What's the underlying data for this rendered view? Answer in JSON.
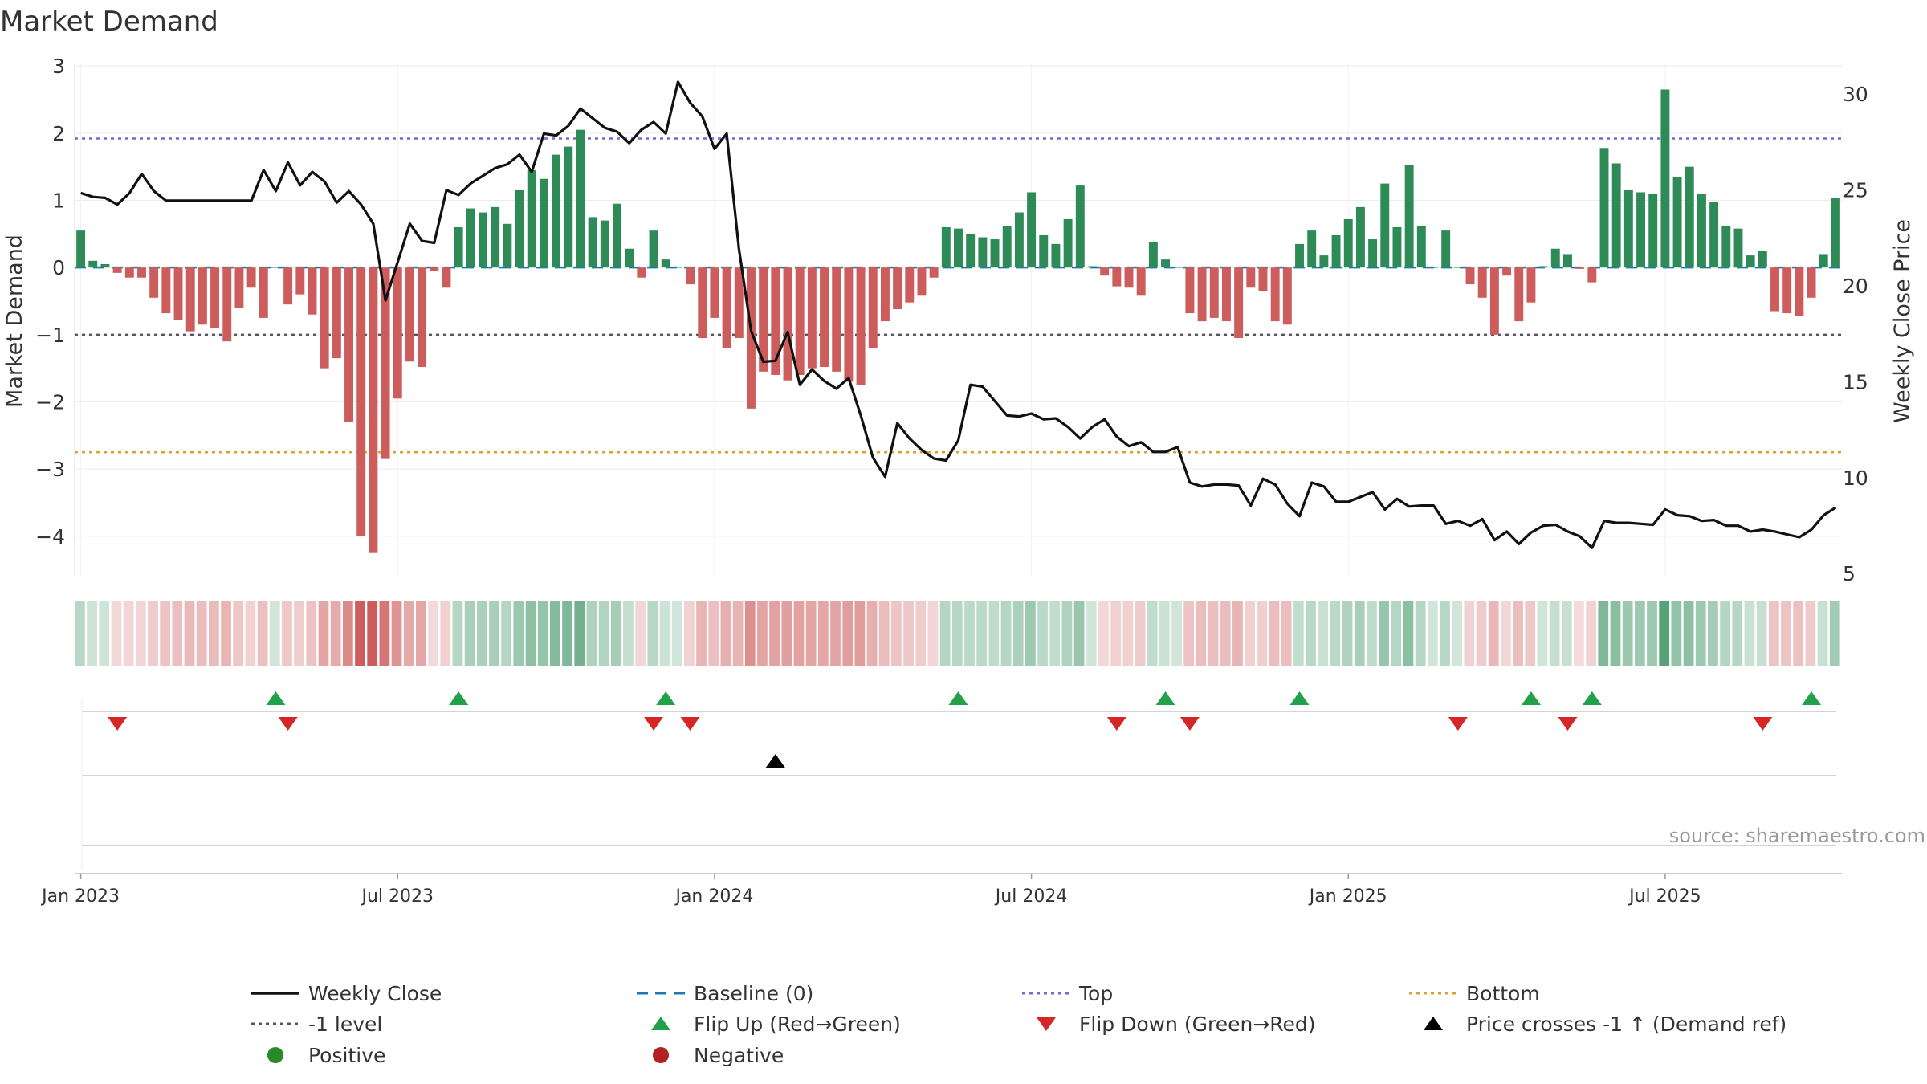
{
  "chart_data": {
    "type": "bar",
    "title": "Market Demand",
    "ylabel": "Market Demand",
    "y2label": "Weekly Close Price",
    "ylim": [
      -4.6,
      3.05
    ],
    "y2lim": [
      4.8,
      31.6
    ],
    "yticks": [
      "3",
      "2",
      "1",
      "0",
      "−1",
      "−2",
      "−3",
      "−4"
    ],
    "ytick_values": [
      3,
      2,
      1,
      0,
      -1,
      -2,
      -3,
      -4
    ],
    "y2ticks": [
      "30",
      "25",
      "20",
      "15",
      "10",
      "5"
    ],
    "y2tick_values": [
      30,
      25,
      20,
      15,
      10,
      5
    ],
    "xticks": [
      "Jan 2023",
      "Jul 2023",
      "Jan 2024",
      "Jul 2024",
      "Jan 2025",
      "Jul 2025"
    ],
    "xtick_weeks": [
      0.5,
      26.5,
      52.5,
      78.5,
      104.5,
      130.5
    ],
    "reference_lines": {
      "baseline": 0,
      "top": 1.92,
      "minus_one": -1,
      "bottom": -2.75
    },
    "demand": [
      0.55,
      0.1,
      0.05,
      -0.08,
      -0.15,
      -0.15,
      -0.45,
      -0.68,
      -0.78,
      -0.95,
      -0.85,
      -0.9,
      -1.1,
      -0.6,
      -0.3,
      -0.75,
      0.0,
      -0.55,
      -0.4,
      -0.7,
      -1.5,
      -1.35,
      -2.3,
      -4.0,
      -4.25,
      -2.85,
      -1.95,
      -1.4,
      -1.48,
      -0.05,
      -0.3,
      0.6,
      0.88,
      0.82,
      0.9,
      0.65,
      1.15,
      1.45,
      1.32,
      1.68,
      1.8,
      2.05,
      0.75,
      0.7,
      0.95,
      0.28,
      -0.15,
      0.55,
      0.12,
      0.0,
      -0.25,
      -1.05,
      -0.75,
      -1.2,
      -1.05,
      -2.1,
      -1.55,
      -1.6,
      -1.68,
      -1.6,
      -1.5,
      -1.48,
      -1.55,
      -1.7,
      -1.75,
      -1.2,
      -0.8,
      -0.62,
      -0.52,
      -0.42,
      -0.15,
      0.6,
      0.58,
      0.5,
      0.45,
      0.42,
      0.62,
      0.82,
      1.12,
      0.48,
      0.35,
      0.72,
      1.22,
      0.02,
      -0.12,
      -0.28,
      -0.3,
      -0.42,
      0.38,
      0.12,
      0.0,
      -0.68,
      -0.8,
      -0.75,
      -0.8,
      -1.05,
      -0.3,
      -0.35,
      -0.8,
      -0.85,
      0.35,
      0.55,
      0.18,
      0.48,
      0.72,
      0.9,
      0.42,
      1.25,
      0.6,
      1.52,
      0.62,
      0.0,
      0.55,
      0.0,
      -0.25,
      -0.45,
      -1.0,
      -0.12,
      -0.8,
      -0.52,
      0.02,
      0.28,
      0.2,
      -0.02,
      -0.22,
      1.78,
      1.55,
      1.15,
      1.12,
      1.1,
      2.65,
      1.35,
      1.5,
      1.1,
      0.98,
      0.62,
      0.58,
      0.18,
      0.25,
      -0.65,
      -0.68,
      -0.72,
      -0.45,
      0.2,
      1.03
    ],
    "close": [
      24.8,
      24.6,
      24.55,
      24.2,
      24.8,
      25.8,
      24.9,
      24.4,
      24.4,
      24.4,
      24.4,
      24.4,
      24.4,
      24.4,
      24.4,
      26.0,
      24.9,
      26.4,
      25.2,
      25.9,
      25.4,
      24.3,
      24.9,
      24.2,
      23.2,
      19.2,
      21.2,
      23.2,
      22.3,
      22.2,
      24.95,
      24.7,
      25.3,
      25.7,
      26.1,
      26.3,
      26.8,
      25.9,
      27.9,
      27.8,
      28.3,
      29.2,
      28.7,
      28.2,
      28.0,
      27.4,
      28.1,
      28.5,
      27.9,
      30.6,
      29.5,
      28.8,
      27.1,
      27.9,
      21.9,
      17.6,
      16.0,
      16.05,
      17.55,
      14.8,
      15.6,
      15.0,
      14.6,
      15.15,
      13.2,
      11.0,
      10.0,
      12.8,
      12.0,
      11.4,
      10.95,
      10.85,
      11.9,
      14.8,
      14.7,
      13.95,
      13.2,
      13.15,
      13.3,
      13.0,
      13.05,
      12.6,
      12.0,
      12.6,
      13.0,
      12.1,
      11.6,
      11.8,
      11.3,
      11.3,
      11.55,
      9.7,
      9.5,
      9.6,
      9.6,
      9.55,
      8.5,
      9.9,
      9.6,
      8.6,
      7.95,
      9.7,
      9.5,
      8.7,
      8.7,
      8.95,
      9.2,
      8.3,
      8.85,
      8.45,
      8.5,
      8.5,
      7.55,
      7.7,
      7.45,
      7.8,
      6.7,
      7.15,
      6.5,
      7.1,
      7.45,
      7.5,
      7.15,
      6.9,
      6.3,
      7.7,
      7.6,
      7.6,
      7.55,
      7.5,
      8.3,
      8.0,
      7.95,
      7.7,
      7.75,
      7.45,
      7.45,
      7.15,
      7.25,
      7.15,
      7.0,
      6.85,
      7.25,
      8.0,
      8.4
    ],
    "flip_up_weeks": [
      16,
      31,
      48,
      72,
      89,
      100,
      119,
      124,
      142
    ],
    "flip_down_weeks": [
      3,
      17,
      47,
      50,
      85,
      91,
      113,
      122,
      138
    ],
    "cross_weeks": [
      57
    ],
    "source": "source: sharemaestro.com",
    "legend": {
      "placement": "bottom",
      "items": [
        {
          "label": "Weekly Close",
          "kind": "line-solid",
          "color": "#111111"
        },
        {
          "label": "Baseline (0)",
          "kind": "line-dashed",
          "color": "#1f77b4"
        },
        {
          "label": "Top",
          "kind": "line-dotted",
          "color": "#6c6cd8"
        },
        {
          "label": "Bottom",
          "kind": "line-dotted",
          "color": "#e0a030"
        },
        {
          "label": "-1 level",
          "kind": "line-dotted",
          "color": "#555566"
        },
        {
          "label": "Flip Up (Red→Green)",
          "kind": "triangle-up",
          "color": "#22a04a"
        },
        {
          "label": "Flip Down (Green→Red)",
          "kind": "triangle-down",
          "color": "#d62728"
        },
        {
          "label": "Price crosses -1 ↑ (Demand ref)",
          "kind": "triangle-up",
          "color": "#000000"
        },
        {
          "label": "Positive",
          "kind": "dot",
          "color": "#2a8a2a"
        },
        {
          "label": "Negative",
          "kind": "dot",
          "color": "#b22222"
        }
      ]
    },
    "colors": {
      "positive": "#2e8b57",
      "negative": "#cd5c5c",
      "close": "#111111",
      "baseline": "#1f77b4",
      "top": "#6c6cd8",
      "bottom": "#e0a030",
      "minus_one": "#555566",
      "flip_up": "#22a04a",
      "flip_down": "#d62728",
      "cross": "#000000"
    }
  }
}
